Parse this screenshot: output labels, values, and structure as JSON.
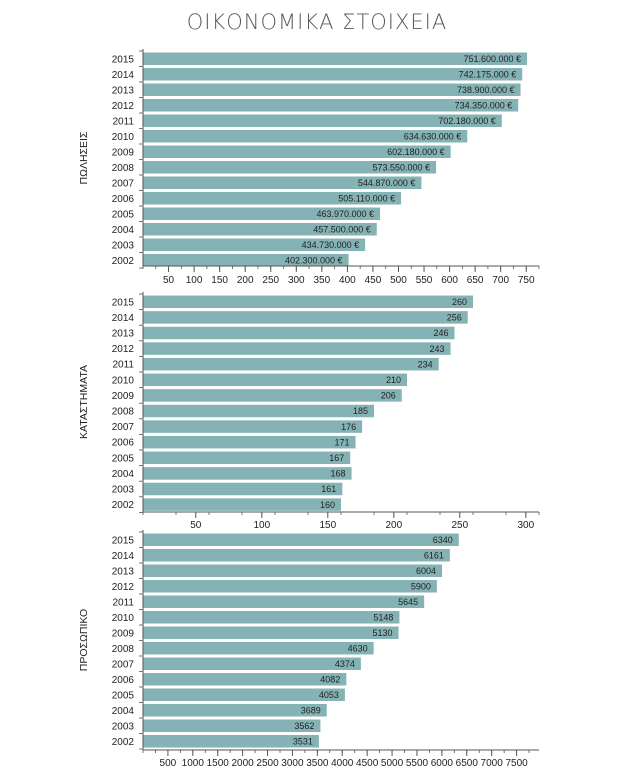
{
  "page": {
    "title": "ΟΙΚΟΝΟΜΙΚΑ ΣΤΟΙΧΕΙΑ"
  },
  "colors": {
    "bar": "#85b3b5",
    "axis": "#555555",
    "text": "#222222"
  },
  "chart_data": [
    {
      "type": "bar",
      "orientation": "horizontal",
      "ylabel": "ΠΩΛΗΣΕΙΣ",
      "categories": [
        "2015",
        "2014",
        "2013",
        "2012",
        "2011",
        "2010",
        "2009",
        "2008",
        "2007",
        "2006",
        "2005",
        "2004",
        "2003",
        "2002"
      ],
      "values": [
        751.6,
        742.175,
        738.9,
        734.35,
        702.18,
        634.63,
        602.18,
        573.55,
        544.87,
        505.11,
        463.97,
        457.5,
        434.73,
        402.3
      ],
      "data_labels": [
        "751.600.000 €",
        "742.175.000 €",
        "738.900.000 €",
        "734.350.000 €",
        "702.180.000 €",
        "634.630.000 €",
        "602.180.000 €",
        "573.550.000 €",
        "544.870.000 €",
        "505.110.000 €",
        "463.970.000 €",
        "457.500.000 €",
        "434.730.000 €",
        "402.300.000 €"
      ],
      "xlim": [
        0,
        775
      ],
      "ticks": [
        50,
        100,
        150,
        200,
        250,
        300,
        350,
        400,
        450,
        500,
        550,
        600,
        650,
        700,
        750
      ]
    },
    {
      "type": "bar",
      "orientation": "horizontal",
      "ylabel": "ΚΑΤΑΣΤΗΜΑΤΑ",
      "categories": [
        "2015",
        "2014",
        "2013",
        "2012",
        "2011",
        "2010",
        "2009",
        "2008",
        "2007",
        "2006",
        "2005",
        "2004",
        "2003",
        "2002"
      ],
      "values": [
        260,
        256,
        246,
        243,
        234,
        210,
        206,
        185,
        176,
        171,
        167,
        168,
        161,
        160
      ],
      "data_labels": [
        "260",
        "256",
        "246",
        "243",
        "234",
        "210",
        "206",
        "185",
        "176",
        "171",
        "167",
        "168",
        "161",
        "160"
      ],
      "xlim": [
        10,
        310
      ],
      "ticks": [
        50,
        100,
        150,
        200,
        250,
        300
      ]
    },
    {
      "type": "bar",
      "orientation": "horizontal",
      "ylabel": "ΠΡΟΣΩΠΙΚΟ",
      "categories": [
        "2015",
        "2014",
        "2013",
        "2012",
        "2011",
        "2010",
        "2009",
        "2008",
        "2007",
        "2006",
        "2005",
        "2004",
        "2003",
        "2002"
      ],
      "values": [
        6340,
        6161,
        6004,
        5900,
        5645,
        5148,
        5130,
        4630,
        4374,
        4082,
        4053,
        3689,
        3562,
        3531
      ],
      "data_labels": [
        "6340",
        "6161",
        "6004",
        "5900",
        "5645",
        "5148",
        "5130",
        "4630",
        "4374",
        "4082",
        "4053",
        "3689",
        "3562",
        "3531"
      ],
      "xlim": [
        0,
        7950
      ],
      "ticks": [
        500,
        1000,
        1500,
        2000,
        2500,
        3000,
        3500,
        4000,
        4500,
        5000,
        5500,
        6000,
        6500,
        7000,
        7500
      ]
    }
  ]
}
